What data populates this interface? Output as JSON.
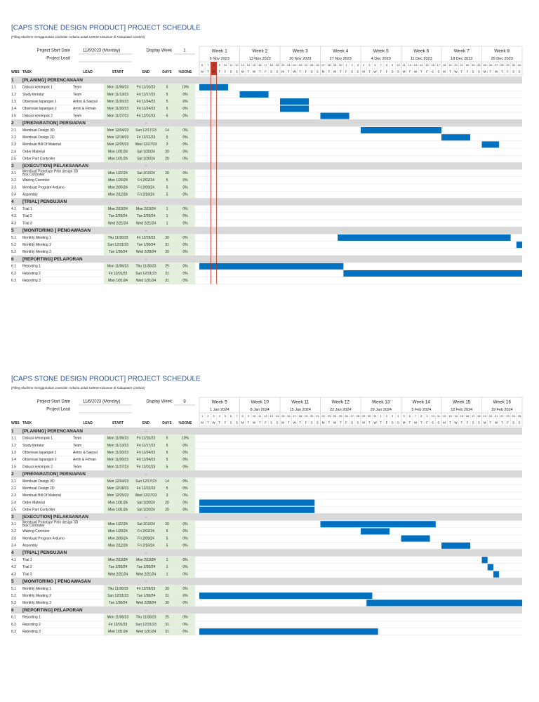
{
  "title": "[CAPS STONE DESIGN PRODUCT] PROJECT SCHEDULE",
  "subtitle": "[Filling Machine menggunakan Controler Arduino untuk UMKM minuman di Kabupaten  Cirebon]",
  "labels": {
    "start_date": "Project Start Date",
    "lead": "Project Lead",
    "display_week": "Display Week"
  },
  "columns": [
    "WBS",
    "TASK",
    "LEAD",
    "START",
    "END",
    "DAYS",
    "%DONE"
  ],
  "day_letters": [
    "M",
    "T",
    "W",
    "T",
    "F",
    "S",
    "S"
  ],
  "sheets": [
    {
      "start_date": "11/6/2023 (Monday)",
      "display_week": 1,
      "weeks": [
        {
          "label": "Week 1",
          "date": "6 Nov 2023"
        },
        {
          "label": "Week 2",
          "date": "13 Nov 2023"
        },
        {
          "label": "Week 3",
          "date": "20 Nov 2023"
        },
        {
          "label": "Week 4",
          "date": "27 Nov 2023"
        },
        {
          "label": "Week 5",
          "date": "4 Dec 2023"
        },
        {
          "label": "Week 6",
          "date": "11 Dec 2023"
        },
        {
          "label": "Week 7",
          "date": "18 Dec 2023"
        },
        {
          "label": "Week 8",
          "date": "25 Dec 2023"
        }
      ],
      "days": [
        6,
        7,
        8,
        9,
        10,
        11,
        12,
        13,
        14,
        15,
        16,
        17,
        18,
        19,
        20,
        21,
        22,
        23,
        24,
        25,
        26,
        27,
        28,
        29,
        30,
        1,
        2,
        3,
        4,
        5,
        6,
        7,
        8,
        9,
        10,
        11,
        12,
        13,
        14,
        15,
        16,
        17,
        18,
        19,
        20,
        21,
        22,
        23,
        24,
        25,
        26,
        27,
        28,
        29,
        30,
        31
      ]
    },
    {
      "start_date": "11/6/2023 (Monday)",
      "display_week": 9,
      "weeks": [
        {
          "label": "Week 9",
          "date": "1 Jan 2024"
        },
        {
          "label": "Week 10",
          "date": "8 Jan 2024"
        },
        {
          "label": "Week 11",
          "date": "15 Jan 2024"
        },
        {
          "label": "Week 12",
          "date": "22 Jan 2024"
        },
        {
          "label": "Week 13",
          "date": "29 Jan 2024"
        },
        {
          "label": "Week 14",
          "date": "5 Feb 2024"
        },
        {
          "label": "Week 15",
          "date": "12 Feb 2024"
        },
        {
          "label": "Week 16",
          "date": "19 Feb 2024"
        }
      ],
      "days": [
        1,
        2,
        3,
        4,
        5,
        6,
        7,
        8,
        9,
        10,
        11,
        12,
        13,
        14,
        15,
        16,
        17,
        18,
        19,
        20,
        21,
        22,
        23,
        24,
        25,
        26,
        27,
        28,
        29,
        30,
        31,
        1,
        2,
        3,
        4,
        5,
        6,
        7,
        8,
        9,
        10,
        11,
        12,
        13,
        14,
        15,
        16,
        17,
        18,
        19,
        20,
        21,
        22,
        23,
        24,
        25
      ]
    }
  ],
  "sections": [
    {
      "wbs": "1",
      "name": "[PLANING] PERENCANAAN",
      "end": "-",
      "tasks": [
        {
          "wbs": "1.1",
          "task": "Diskusi kelompok 1",
          "lead": "Team",
          "start": "Mon 11/06/23",
          "end": "Fri 11/10/23",
          "days": 5,
          "done": "10%"
        },
        {
          "wbs": "1.2",
          "task": "Study literatur",
          "lead": "Team",
          "start": "Mon 11/13/23",
          "end": "Fri 11/17/23",
          "days": 5,
          "done": "0%"
        },
        {
          "wbs": "1.3",
          "task": "Observasi lapangan 1",
          "lead": "Anton & Saepul",
          "start": "Mon 11/20/23",
          "end": "Fri 11/24/23",
          "days": 5,
          "done": "0%"
        },
        {
          "wbs": "1.4",
          "task": "Observasi lapangan 2",
          "lead": "Amin & Firman",
          "start": "Mon 11/20/23",
          "end": "Fri 11/24/23",
          "days": 5,
          "done": "0%"
        },
        {
          "wbs": "1.5",
          "task": "Diskusi kelompok 2",
          "lead": "Team",
          "start": "Mon 11/27/23",
          "end": "Fri 12/01/23",
          "days": 5,
          "done": "0%"
        }
      ]
    },
    {
      "wbs": "2",
      "name": "[PREPARATION] PERSIAPAN",
      "end": "-",
      "tasks": [
        {
          "wbs": "2.1",
          "task": "Membuat Design 3D",
          "start": "Mon 12/04/23",
          "end": "Sun 12/17/23",
          "days": 14,
          "done": "0%"
        },
        {
          "wbs": "2.2",
          "task": "Membuat Design 2D",
          "start": "Mon 12/18/23",
          "end": "Fri 12/22/23",
          "days": 5,
          "done": "0%"
        },
        {
          "wbs": "2.3",
          "task": "Membuat Bill Of Material",
          "start": "Mon 12/25/23",
          "end": "Wed 12/27/23",
          "days": 3,
          "done": "0%"
        },
        {
          "wbs": "2.4",
          "task": "Order Material",
          "start": "Mon 1/01/24",
          "end": "Sat 1/20/24",
          "days": 20,
          "done": "0%"
        },
        {
          "wbs": "2.5",
          "task": "Order Part Controller",
          "start": "Mon 1/01/24",
          "end": "Sat 1/20/24",
          "days": 20,
          "done": "0%"
        }
      ]
    },
    {
      "wbs": "3",
      "name": "[EXECUTION] PELAKSANAAN",
      "end": "-",
      "tasks": [
        {
          "wbs": "3.1",
          "task": "Membuat Prototype Prtin design 3D Box Controller",
          "start": "Mon 1/22/24",
          "end": "Sat 2/10/24",
          "days": 20,
          "done": "0%"
        },
        {
          "wbs": "3.2",
          "task": "Wairing Controler",
          "start": "Mon 1/29/24",
          "end": "Fri 2/02/24",
          "days": 5,
          "done": "0%"
        },
        {
          "wbs": "3.3",
          "task": "Membuat Program Arduino",
          "start": "Mon 2/05/24",
          "end": "Fri 2/09/24",
          "days": 5,
          "done": "0%"
        },
        {
          "wbs": "3.4",
          "task": "Assembly",
          "start": "Mon 2/12/24",
          "end": "Fri 2/16/24",
          "days": 5,
          "done": "0%"
        }
      ]
    },
    {
      "wbs": "4",
      "name": "[TRIAL] PENGUJIAN",
      "end": "-",
      "tasks": [
        {
          "wbs": "4.1",
          "task": "Trial 1",
          "start": "Mon 2/19/24",
          "end": "Mon 2/19/24",
          "days": 1,
          "done": "0%"
        },
        {
          "wbs": "4.2",
          "task": "Trial 2",
          "start": "Tue 2/20/24",
          "end": "Tue 2/20/24",
          "days": 1,
          "done": "0%"
        },
        {
          "wbs": "4.3",
          "task": "Trial 3",
          "start": "Wed 2/21/24",
          "end": "Wed 2/21/24",
          "days": 1,
          "done": "0%"
        }
      ]
    },
    {
      "wbs": "5",
      "name": "[MONITORING ] PENGAWASAN",
      "end": "-",
      "tasks": [
        {
          "wbs": "5.1",
          "task": "Monthly Meeting 1",
          "start": "Thu 11/30/23",
          "end": "Fri 12/29/23",
          "days": 30,
          "done": "0%"
        },
        {
          "wbs": "5.2",
          "task": "Monthly Meeting 2",
          "start": "Sun 12/31/23",
          "end": "Tue 1/30/24",
          "days": 31,
          "done": "0%"
        },
        {
          "wbs": "5.3",
          "task": "Monthly Meeting 3",
          "start": "Tue 1/30/24",
          "end": "Wed 2/28/24",
          "days": 30,
          "done": "0%"
        }
      ]
    },
    {
      "wbs": "6",
      "name": "[REPORTING] PELAPORAN",
      "end": "-",
      "tasks": [
        {
          "wbs": "6.1",
          "task": "Reporting 1",
          "start": "Mon 11/06/23",
          "end": "Thu 11/30/23",
          "days": 25,
          "done": "0%"
        },
        {
          "wbs": "6.2",
          "task": "Reporting 2",
          "start": "Fri 12/01/23",
          "end": "Sun 12/31/23",
          "days": 31,
          "done": "0%"
        },
        {
          "wbs": "6.3",
          "task": "Reporting 3",
          "start": "Mon 1/01/24",
          "end": "Wed 1/31/24",
          "days": 31,
          "done": "0%"
        }
      ]
    }
  ]
}
